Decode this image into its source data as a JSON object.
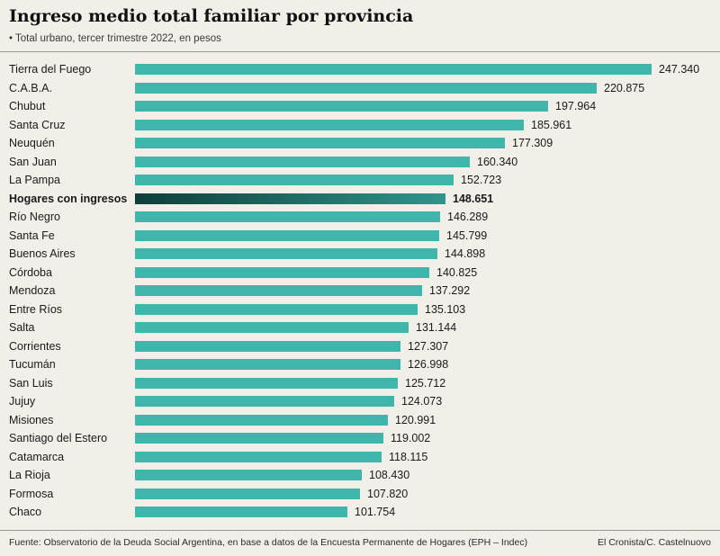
{
  "header": {
    "title": "Ingreso medio total familiar por provincia",
    "subtitle": "• Total urbano, tercer trimestre 2022, en pesos"
  },
  "chart_data": {
    "type": "bar",
    "orientation": "horizontal",
    "title": "Ingreso medio total familiar por provincia",
    "subtitle": "Total urbano, tercer trimestre 2022, en pesos",
    "unit": "pesos",
    "xlim": [
      0,
      247340
    ],
    "grid": false,
    "legend": "none",
    "categories": [
      "Tierra del Fuego",
      "C.A.B.A.",
      "Chubut",
      "Santa Cruz",
      "Neuquén",
      "San Juan",
      "La Pampa",
      "Hogares con ingresos",
      "Río Negro",
      "Santa Fe",
      "Buenos Aires",
      "Córdoba",
      "Mendoza",
      "Entre Ríos",
      "Salta",
      "Corrientes",
      "Tucumán",
      "San Luis",
      "Jujuy",
      "Misiones",
      "Santiago del Estero",
      "Catamarca",
      "La Rioja",
      "Formosa",
      "Chaco"
    ],
    "values": [
      247340,
      220875,
      197964,
      185961,
      177309,
      160340,
      152723,
      148651,
      146289,
      145799,
      144898,
      140825,
      137292,
      135103,
      131144,
      127307,
      126998,
      125712,
      124073,
      120991,
      119002,
      118115,
      108430,
      107820,
      101754
    ],
    "value_labels": [
      "247.340",
      "220.875",
      "197.964",
      "185.961",
      "177.309",
      "160.340",
      "152.723",
      "148.651",
      "146.289",
      "145.799",
      "144.898",
      "140.825",
      "137.292",
      "135.103",
      "131.144",
      "127.307",
      "126.998",
      "125.712",
      "124.073",
      "120.991",
      "119.002",
      "118.115",
      "108.430",
      "107.820",
      "101.754"
    ],
    "highlight_index": 7,
    "highlight_category": "Hogares con ingresos",
    "colors": {
      "bar": "#3fb5ab",
      "highlight_start": "#0f3e3a",
      "highlight_end": "#2f958c",
      "background": "#f2efe8"
    }
  },
  "footer": {
    "source": "Fuente: Observatorio de la Deuda Social Argentina, en base a datos de la Encuesta Permanente de Hogares (EPH – Indec)",
    "credit": "El Cronista/C. Castelnuovo"
  }
}
